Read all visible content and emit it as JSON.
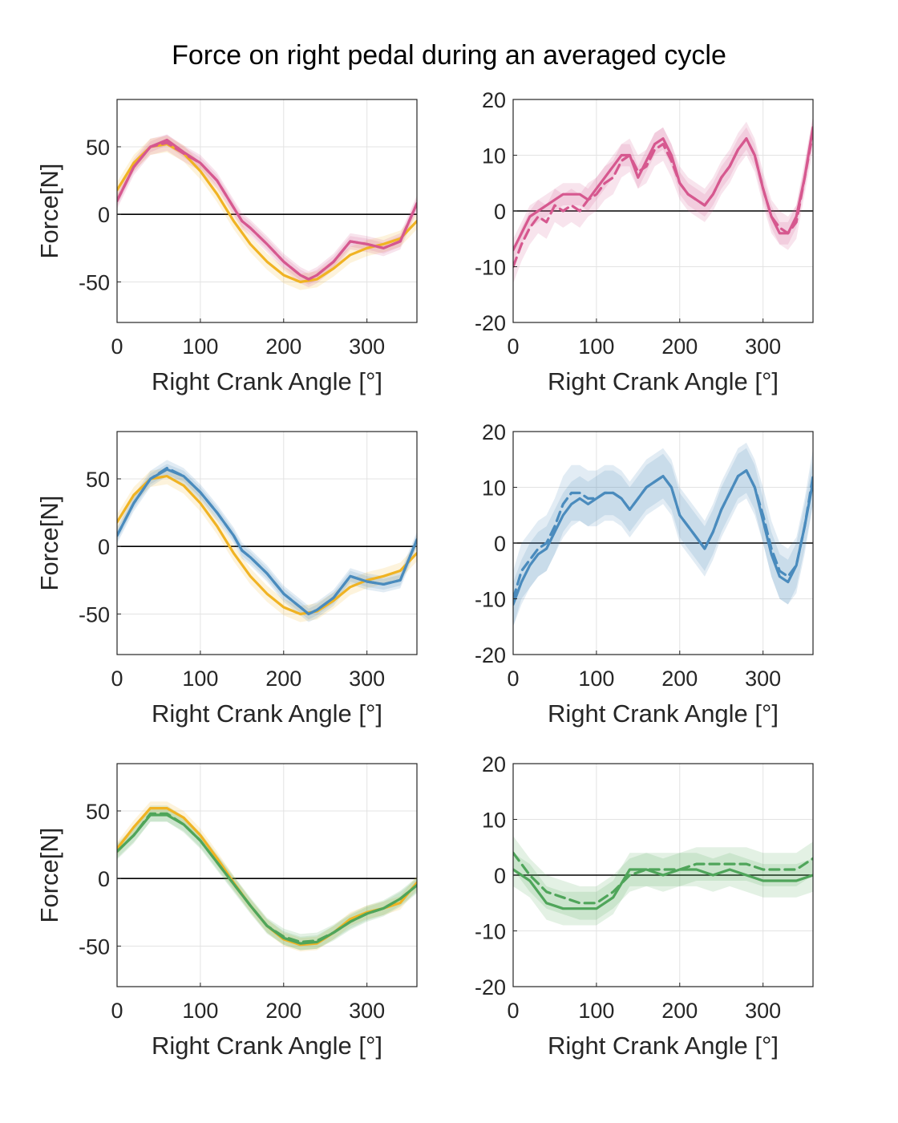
{
  "figure": {
    "title": "Force on right pedal during an averaged cycle"
  },
  "colors": {
    "pink": "#d6588f",
    "blue": "#4a8bbd",
    "green": "#4fa55a",
    "yellow": "#f0b323"
  },
  "chart_data": [
    {
      "type": "line",
      "xlabel": "Right Crank Angle [°]",
      "ylabel": "Force[N]",
      "xlim": [
        0,
        360
      ],
      "ylim": [
        -80,
        85
      ],
      "xticks": [
        "0",
        "100",
        "200",
        "300"
      ],
      "yticks": [
        "50",
        "0",
        "-50"
      ],
      "grid": true,
      "series": [
        {
          "color": "#f0b323",
          "style": "solid",
          "band": 6,
          "x": [
            0,
            20,
            40,
            60,
            80,
            100,
            120,
            140,
            160,
            180,
            200,
            220,
            240,
            260,
            280,
            300,
            320,
            340,
            360
          ],
          "y": [
            18,
            38,
            50,
            52,
            45,
            32,
            15,
            -5,
            -22,
            -35,
            -45,
            -50,
            -48,
            -40,
            -30,
            -25,
            -22,
            -18,
            -5
          ]
        },
        {
          "color": "#d6588f",
          "style": "dashed",
          "band": 6,
          "x": [
            0,
            20,
            40,
            60,
            80,
            100,
            120,
            140,
            150,
            160,
            180,
            200,
            220,
            230,
            240,
            260,
            280,
            300,
            320,
            340,
            360
          ],
          "y": [
            10,
            35,
            50,
            53,
            45,
            38,
            25,
            5,
            -5,
            -10,
            -22,
            -35,
            -45,
            -48,
            -45,
            -35,
            -20,
            -22,
            -25,
            -20,
            8
          ]
        },
        {
          "color": "#d6588f",
          "style": "solid",
          "band": 4,
          "x": [
            0,
            20,
            40,
            60,
            80,
            100,
            120,
            140,
            150,
            160,
            180,
            200,
            220,
            230,
            240,
            260,
            280,
            300,
            320,
            340,
            360
          ],
          "y": [
            10,
            35,
            50,
            55,
            46,
            38,
            25,
            5,
            -5,
            -10,
            -22,
            -35,
            -45,
            -48,
            -45,
            -35,
            -20,
            -22,
            -25,
            -20,
            8
          ]
        }
      ]
    },
    {
      "type": "line",
      "xlabel": "Right Crank Angle [°]",
      "ylabel": "",
      "xlim": [
        0,
        360
      ],
      "ylim": [
        -20,
        20
      ],
      "xticks": [
        "0",
        "100",
        "200",
        "300"
      ],
      "yticks": [
        "20",
        "10",
        "0",
        "-10",
        "-20"
      ],
      "grid": true,
      "series": [
        {
          "color": "#d6588f",
          "style": "dashed",
          "band": 3,
          "x": [
            0,
            10,
            20,
            30,
            40,
            50,
            60,
            70,
            80,
            90,
            100,
            110,
            120,
            130,
            140,
            150,
            160,
            170,
            180,
            190,
            200,
            210,
            220,
            230,
            240,
            250,
            260,
            270,
            280,
            290,
            300,
            310,
            320,
            330,
            340,
            350,
            360
          ],
          "y": [
            -10,
            -6,
            -3,
            -1,
            -2,
            1,
            0,
            1,
            0,
            2,
            3,
            5,
            6,
            9,
            10,
            7,
            8,
            11,
            12,
            9,
            5,
            3,
            2,
            1,
            3,
            6,
            8,
            11,
            13,
            10,
            4,
            -1,
            -3,
            -4,
            -2,
            6,
            14
          ]
        },
        {
          "color": "#d6588f",
          "style": "solid",
          "band": 2,
          "x": [
            0,
            10,
            20,
            30,
            40,
            50,
            60,
            70,
            80,
            90,
            100,
            110,
            120,
            130,
            140,
            150,
            160,
            170,
            180,
            190,
            200,
            210,
            220,
            230,
            240,
            250,
            260,
            270,
            280,
            290,
            300,
            310,
            320,
            330,
            340,
            350,
            360
          ],
          "y": [
            -7,
            -4,
            -1,
            0,
            1,
            2,
            3,
            3,
            3,
            2,
            4,
            6,
            8,
            10,
            10,
            6,
            9,
            12,
            13,
            10,
            5,
            3,
            2,
            1,
            3,
            6,
            8,
            11,
            13,
            10,
            4,
            -1,
            -4,
            -4,
            -1,
            6,
            15
          ]
        }
      ]
    },
    {
      "type": "line",
      "xlabel": "Right Crank Angle [°]",
      "ylabel": "Force[N]",
      "xlim": [
        0,
        360
      ],
      "ylim": [
        -80,
        85
      ],
      "xticks": [
        "0",
        "100",
        "200",
        "300"
      ],
      "yticks": [
        "50",
        "0",
        "-50"
      ],
      "grid": true,
      "series": [
        {
          "color": "#f0b323",
          "style": "solid",
          "band": 6,
          "x": [
            0,
            20,
            40,
            60,
            80,
            100,
            120,
            140,
            160,
            180,
            200,
            220,
            240,
            260,
            280,
            300,
            320,
            340,
            360
          ],
          "y": [
            18,
            38,
            50,
            52,
            45,
            32,
            15,
            -5,
            -22,
            -35,
            -45,
            -50,
            -48,
            -40,
            -30,
            -25,
            -22,
            -18,
            -5
          ]
        },
        {
          "color": "#4a8bbd",
          "style": "dashed",
          "band": 6,
          "x": [
            0,
            20,
            40,
            60,
            80,
            100,
            120,
            140,
            150,
            160,
            180,
            200,
            220,
            230,
            240,
            260,
            280,
            300,
            320,
            340,
            360
          ],
          "y": [
            8,
            32,
            50,
            58,
            52,
            40,
            25,
            8,
            -3,
            -8,
            -20,
            -35,
            -45,
            -50,
            -47,
            -38,
            -22,
            -26,
            -28,
            -25,
            5
          ]
        },
        {
          "color": "#4a8bbd",
          "style": "solid",
          "band": 4,
          "x": [
            0,
            20,
            40,
            60,
            80,
            100,
            120,
            140,
            150,
            160,
            180,
            200,
            220,
            230,
            240,
            260,
            280,
            300,
            320,
            340,
            360
          ],
          "y": [
            8,
            32,
            50,
            57,
            52,
            40,
            25,
            8,
            -3,
            -8,
            -20,
            -35,
            -45,
            -50,
            -47,
            -38,
            -22,
            -26,
            -28,
            -25,
            5
          ]
        }
      ]
    },
    {
      "type": "line",
      "xlabel": "Right Crank Angle [°]",
      "ylabel": "",
      "xlim": [
        0,
        360
      ],
      "ylim": [
        -20,
        20
      ],
      "xticks": [
        "0",
        "100",
        "200",
        "300"
      ],
      "yticks": [
        "20",
        "10",
        "0",
        "-10",
        "-20"
      ],
      "grid": true,
      "series": [
        {
          "color": "#4a8bbd",
          "style": "dashed",
          "band": 5,
          "x": [
            0,
            10,
            20,
            30,
            40,
            50,
            60,
            70,
            80,
            90,
            100,
            110,
            120,
            130,
            140,
            150,
            160,
            170,
            180,
            190,
            200,
            210,
            220,
            230,
            240,
            250,
            260,
            270,
            280,
            290,
            300,
            310,
            320,
            330,
            340,
            350,
            360
          ],
          "y": [
            -10,
            -5,
            -3,
            -1,
            0,
            3,
            7,
            9,
            9,
            8,
            8,
            9,
            9,
            8,
            6,
            8,
            10,
            11,
            12,
            10,
            5,
            3,
            1,
            -1,
            2,
            6,
            9,
            12,
            13,
            10,
            5,
            -1,
            -5,
            -6,
            -4,
            3,
            12
          ]
        },
        {
          "color": "#4a8bbd",
          "style": "solid",
          "band": 4,
          "x": [
            0,
            10,
            20,
            30,
            40,
            50,
            60,
            70,
            80,
            90,
            100,
            110,
            120,
            130,
            140,
            150,
            160,
            170,
            180,
            190,
            200,
            210,
            220,
            230,
            240,
            250,
            260,
            270,
            280,
            290,
            300,
            310,
            320,
            330,
            340,
            350,
            360
          ],
          "y": [
            -11,
            -7,
            -4,
            -2,
            -1,
            2,
            5,
            7,
            8,
            7,
            8,
            9,
            9,
            8,
            6,
            8,
            10,
            11,
            12,
            10,
            5,
            3,
            1,
            -1,
            2,
            6,
            9,
            12,
            13,
            10,
            4,
            -2,
            -6,
            -7,
            -4,
            3,
            11
          ]
        }
      ]
    },
    {
      "type": "line",
      "xlabel": "Right Crank Angle [°]",
      "ylabel": "Force[N]",
      "xlim": [
        0,
        360
      ],
      "ylim": [
        -80,
        85
      ],
      "xticks": [
        "0",
        "100",
        "200",
        "300"
      ],
      "yticks": [
        "50",
        "0",
        "-50"
      ],
      "grid": true,
      "series": [
        {
          "color": "#f0b323",
          "style": "solid",
          "band": 5,
          "x": [
            0,
            20,
            40,
            60,
            80,
            100,
            120,
            140,
            160,
            180,
            200,
            220,
            240,
            260,
            280,
            300,
            320,
            340,
            360
          ],
          "y": [
            22,
            38,
            52,
            52,
            45,
            32,
            15,
            -3,
            -20,
            -35,
            -45,
            -49,
            -48,
            -40,
            -30,
            -25,
            -22,
            -18,
            -3
          ]
        },
        {
          "color": "#4fa55a",
          "style": "dashed",
          "band": 6,
          "x": [
            0,
            20,
            40,
            60,
            80,
            100,
            120,
            140,
            160,
            180,
            200,
            220,
            240,
            260,
            280,
            300,
            320,
            340,
            360
          ],
          "y": [
            20,
            32,
            48,
            48,
            40,
            28,
            12,
            -4,
            -20,
            -35,
            -43,
            -47,
            -46,
            -40,
            -32,
            -26,
            -22,
            -15,
            -5
          ]
        },
        {
          "color": "#4fa55a",
          "style": "solid",
          "band": 5,
          "x": [
            0,
            20,
            40,
            60,
            80,
            100,
            120,
            140,
            160,
            180,
            200,
            220,
            240,
            260,
            280,
            300,
            320,
            340,
            360
          ],
          "y": [
            20,
            32,
            47,
            47,
            40,
            28,
            12,
            -4,
            -20,
            -35,
            -44,
            -48,
            -47,
            -40,
            -32,
            -26,
            -22,
            -15,
            -5
          ]
        }
      ]
    },
    {
      "type": "line",
      "xlabel": "Right Crank Angle [°]",
      "ylabel": "",
      "xlim": [
        0,
        360
      ],
      "ylim": [
        -20,
        20
      ],
      "xticks": [
        "0",
        "100",
        "200",
        "300"
      ],
      "yticks": [
        "20",
        "10",
        "0",
        "-10",
        "-20"
      ],
      "grid": true,
      "series": [
        {
          "color": "#4fa55a",
          "style": "dashed",
          "band": 3,
          "x": [
            0,
            20,
            40,
            60,
            80,
            100,
            120,
            140,
            160,
            180,
            200,
            220,
            240,
            260,
            280,
            300,
            320,
            340,
            360
          ],
          "y": [
            4,
            0,
            -3,
            -4,
            -5,
            -5,
            -3,
            0,
            1,
            1,
            1,
            2,
            2,
            2,
            2,
            1,
            1,
            1,
            3
          ]
        },
        {
          "color": "#4fa55a",
          "style": "solid",
          "band": 3,
          "x": [
            0,
            20,
            40,
            60,
            80,
            100,
            120,
            140,
            160,
            180,
            200,
            220,
            240,
            260,
            280,
            300,
            320,
            340,
            360
          ],
          "y": [
            1,
            -1,
            -5,
            -6,
            -6,
            -6,
            -4,
            1,
            1,
            0,
            1,
            1,
            0,
            1,
            0,
            -1,
            -1,
            -1,
            0
          ]
        }
      ]
    }
  ]
}
